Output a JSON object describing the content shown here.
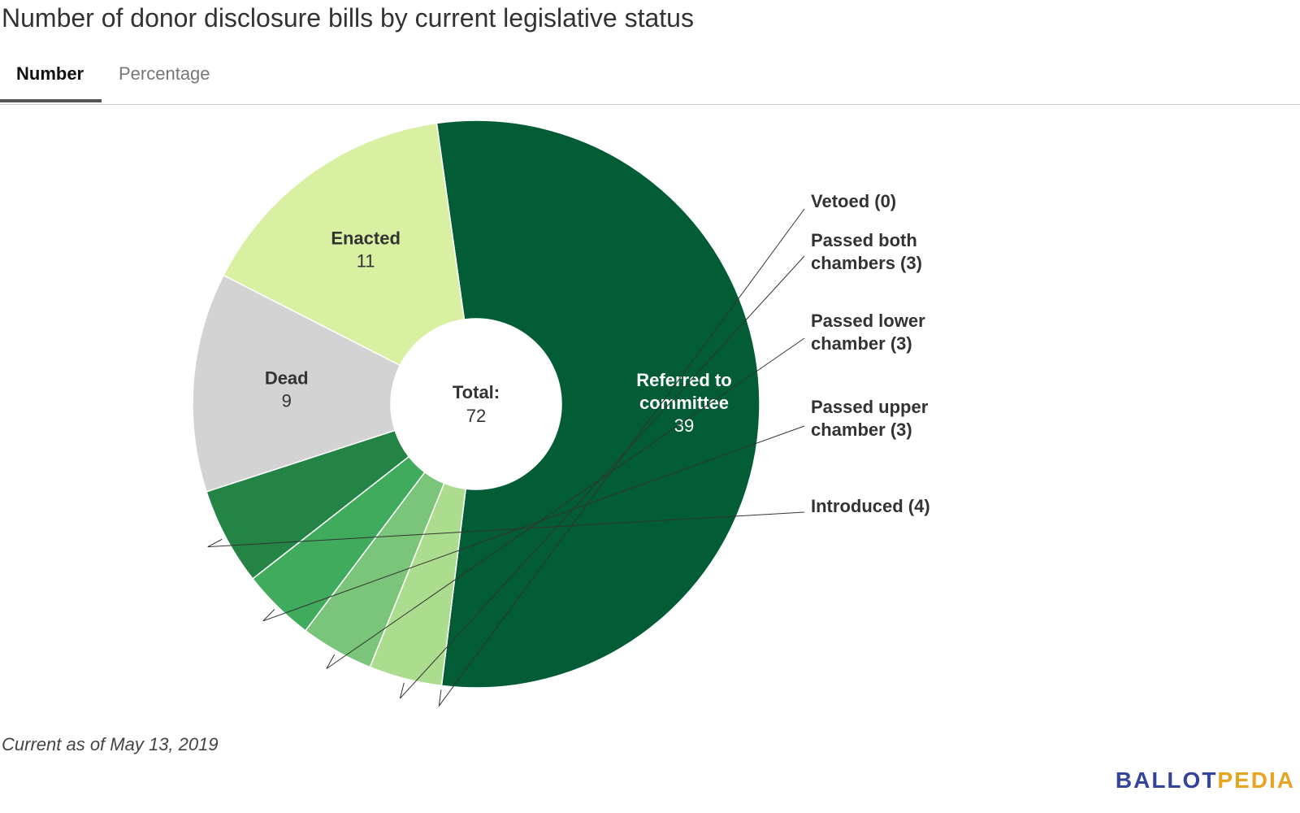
{
  "title": "Number of donor disclosure bills by current legislative status",
  "tabs": [
    {
      "label": "Number",
      "active": true
    },
    {
      "label": "Percentage",
      "active": false
    }
  ],
  "footnote": "Current as of May 13, 2019",
  "logo": {
    "part1": "BALLOT",
    "part2": "PEDIA",
    "colors": [
      "#33449a",
      "#e8a320"
    ]
  },
  "chart_data": {
    "type": "pie",
    "title": "Number of donor disclosure bills by current legislative status",
    "center_label": "Total:",
    "total": 72,
    "slices": [
      {
        "label": "Referred to committee",
        "value": 39,
        "color": "#025c36"
      },
      {
        "label": "Vetoed",
        "value": 0,
        "color": "#025c36"
      },
      {
        "label": "Passed both chambers",
        "value": 3,
        "color": "#acdd8e"
      },
      {
        "label": "Passed lower chamber",
        "value": 3,
        "color": "#7ac57a"
      },
      {
        "label": "Passed upper chamber",
        "value": 3,
        "color": "#41ab5d"
      },
      {
        "label": "Introduced",
        "value": 4,
        "color": "#238445"
      },
      {
        "label": "Dead",
        "value": 9,
        "color": "#d3d3d3"
      },
      {
        "label": "Enacted",
        "value": 11,
        "color": "#d9f0a3"
      }
    ],
    "inside_labels": [
      {
        "lines": [
          "Referred to",
          "committee"
        ],
        "value": "39"
      },
      {
        "lines": [
          "Dead"
        ],
        "value": "9"
      },
      {
        "lines": [
          "Enacted"
        ],
        "value": "11"
      }
    ],
    "outside_labels": [
      {
        "lines": [
          "Vetoed (0)"
        ]
      },
      {
        "lines": [
          "Passed both",
          "chambers (3)"
        ]
      },
      {
        "lines": [
          "Passed lower",
          "chamber (3)"
        ]
      },
      {
        "lines": [
          "Passed upper",
          "chamber (3)"
        ]
      },
      {
        "lines": [
          "Introduced (4)"
        ]
      }
    ]
  }
}
